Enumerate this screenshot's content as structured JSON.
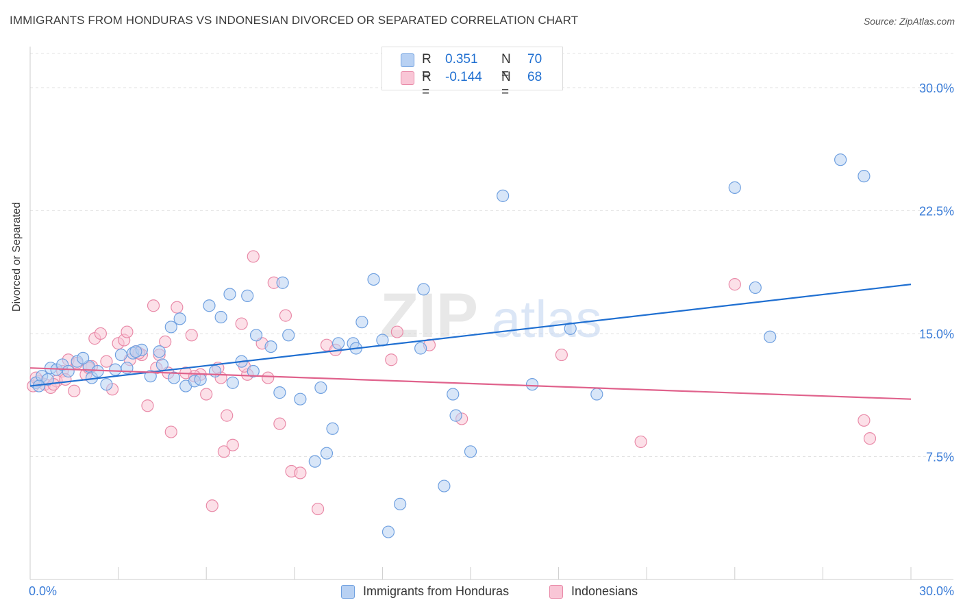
{
  "title": "IMMIGRANTS FROM HONDURAS VS INDONESIAN DIVORCED OR SEPARATED CORRELATION CHART",
  "source": "Source: ZipAtlas.com",
  "watermark": {
    "zip": "ZIP",
    "atlas": "atlas"
  },
  "legend_top": [
    {
      "swatch_color": "#b8d1f3",
      "border_color": "#6fa0e0",
      "r_label": "R =",
      "r_value": "0.351",
      "n_label": "N =",
      "n_value": "70"
    },
    {
      "swatch_color": "#f9c6d6",
      "border_color": "#e98aa8",
      "r_label": "R =",
      "r_value": "-0.144",
      "n_label": "N =",
      "n_value": "68"
    }
  ],
  "legend_bottom": [
    {
      "label": "Immigrants from Honduras",
      "swatch_color": "#b8d1f3",
      "border_color": "#6fa0e0"
    },
    {
      "label": "Indonesians",
      "swatch_color": "#f9c6d6",
      "border_color": "#e98aa8"
    }
  ],
  "chart_data": {
    "type": "scatter",
    "title": "IMMIGRANTS FROM HONDURAS VS INDONESIAN DIVORCED OR SEPARATED CORRELATION CHART",
    "xlabel": "",
    "ylabel": "Divorced or Separated",
    "xlim": [
      0,
      30
    ],
    "ylim": [
      0,
      32
    ],
    "x_tick_labels": [
      "0.0%",
      "30.0%"
    ],
    "y_ticks": [
      7.5,
      15.0,
      22.5,
      30.0
    ],
    "y_tick_labels": [
      "7.5%",
      "15.0%",
      "22.5%",
      "30.0%"
    ],
    "grid": "horizontal dashed",
    "legend_position": "top-center and bottom",
    "colors": {
      "series1_fill": "#b8d1f3",
      "series1_stroke": "#6fa0e0",
      "series1_line": "#1f6fd1",
      "series2_fill": "#f9c6d6",
      "series2_stroke": "#e98aa8",
      "series2_line": "#e0628c",
      "axis_label_blue": "#3b7dd8"
    },
    "series": [
      {
        "name": "Immigrants from Honduras",
        "color": "#6fa0e0",
        "trendline": {
          "x": [
            0,
            30
          ],
          "y": [
            11.8,
            18.0
          ]
        },
        "points": [
          [
            0.2,
            12.0
          ],
          [
            0.4,
            12.4
          ],
          [
            0.6,
            12.2
          ],
          [
            0.7,
            12.9
          ],
          [
            0.9,
            12.8
          ],
          [
            1.1,
            13.1
          ],
          [
            1.3,
            12.7
          ],
          [
            1.6,
            13.3
          ],
          [
            2.0,
            13.0
          ],
          [
            2.1,
            12.3
          ],
          [
            2.3,
            12.7
          ],
          [
            2.6,
            11.9
          ],
          [
            2.9,
            12.8
          ],
          [
            3.1,
            13.7
          ],
          [
            3.3,
            12.9
          ],
          [
            3.5,
            13.8
          ],
          [
            3.8,
            14.0
          ],
          [
            4.1,
            12.4
          ],
          [
            4.4,
            13.9
          ],
          [
            4.5,
            13.1
          ],
          [
            4.8,
            15.4
          ],
          [
            4.9,
            12.3
          ],
          [
            5.1,
            15.9
          ],
          [
            5.3,
            11.8
          ],
          [
            5.6,
            12.1
          ],
          [
            5.8,
            12.2
          ],
          [
            6.1,
            16.7
          ],
          [
            6.3,
            12.7
          ],
          [
            6.5,
            16.0
          ],
          [
            6.8,
            17.4
          ],
          [
            6.9,
            12.0
          ],
          [
            7.2,
            13.3
          ],
          [
            7.4,
            17.3
          ],
          [
            7.6,
            12.7
          ],
          [
            7.7,
            14.9
          ],
          [
            8.2,
            14.2
          ],
          [
            8.6,
            18.1
          ],
          [
            8.5,
            11.4
          ],
          [
            8.8,
            14.9
          ],
          [
            9.2,
            11.0
          ],
          [
            9.7,
            7.2
          ],
          [
            9.9,
            11.7
          ],
          [
            10.1,
            7.7
          ],
          [
            10.3,
            9.2
          ],
          [
            10.5,
            14.4
          ],
          [
            11.0,
            14.4
          ],
          [
            11.1,
            14.1
          ],
          [
            11.3,
            15.7
          ],
          [
            11.7,
            18.3
          ],
          [
            12.0,
            14.6
          ],
          [
            12.2,
            2.9
          ],
          [
            12.6,
            4.6
          ],
          [
            13.3,
            14.1
          ],
          [
            13.4,
            17.7
          ],
          [
            14.1,
            5.7
          ],
          [
            14.4,
            11.3
          ],
          [
            14.5,
            10.0
          ],
          [
            15.0,
            7.8
          ],
          [
            16.1,
            23.4
          ],
          [
            17.1,
            11.9
          ],
          [
            18.4,
            15.3
          ],
          [
            19.3,
            11.3
          ],
          [
            24.0,
            23.9
          ],
          [
            24.7,
            17.8
          ],
          [
            25.2,
            14.8
          ],
          [
            27.6,
            25.6
          ],
          [
            28.4,
            24.6
          ],
          [
            0.3,
            11.8
          ],
          [
            1.8,
            13.5
          ],
          [
            3.6,
            13.9
          ]
        ]
      },
      {
        "name": "Indonesians",
        "color": "#e98aa8",
        "trendline": {
          "x": [
            0,
            30
          ],
          "y": [
            12.9,
            11.0
          ]
        },
        "points": [
          [
            0.1,
            11.8
          ],
          [
            0.3,
            12.1
          ],
          [
            0.5,
            11.9
          ],
          [
            0.7,
            11.7
          ],
          [
            0.9,
            12.1
          ],
          [
            1.1,
            12.7
          ],
          [
            1.3,
            13.4
          ],
          [
            1.5,
            11.5
          ],
          [
            1.6,
            13.2
          ],
          [
            1.9,
            12.5
          ],
          [
            2.1,
            13.0
          ],
          [
            2.2,
            14.7
          ],
          [
            2.4,
            15.0
          ],
          [
            2.6,
            13.3
          ],
          [
            2.8,
            11.6
          ],
          [
            3.0,
            14.4
          ],
          [
            3.2,
            14.6
          ],
          [
            3.3,
            15.1
          ],
          [
            3.4,
            13.4
          ],
          [
            3.6,
            13.9
          ],
          [
            3.8,
            13.7
          ],
          [
            4.0,
            10.6
          ],
          [
            4.2,
            16.7
          ],
          [
            4.4,
            13.7
          ],
          [
            4.6,
            14.5
          ],
          [
            4.7,
            12.6
          ],
          [
            4.8,
            9.0
          ],
          [
            5.0,
            16.6
          ],
          [
            5.3,
            12.6
          ],
          [
            5.5,
            14.9
          ],
          [
            5.8,
            12.5
          ],
          [
            6.0,
            11.3
          ],
          [
            6.2,
            4.5
          ],
          [
            6.4,
            12.9
          ],
          [
            6.6,
            7.8
          ],
          [
            6.7,
            10.0
          ],
          [
            6.9,
            8.2
          ],
          [
            7.2,
            15.6
          ],
          [
            7.4,
            12.5
          ],
          [
            7.6,
            19.7
          ],
          [
            7.9,
            14.4
          ],
          [
            8.1,
            12.3
          ],
          [
            8.3,
            18.1
          ],
          [
            8.5,
            9.5
          ],
          [
            8.7,
            16.1
          ],
          [
            8.9,
            6.6
          ],
          [
            9.2,
            6.5
          ],
          [
            9.8,
            4.3
          ],
          [
            10.1,
            14.3
          ],
          [
            10.4,
            14.0
          ],
          [
            12.3,
            13.4
          ],
          [
            12.5,
            15.1
          ],
          [
            13.6,
            14.3
          ],
          [
            14.7,
            9.8
          ],
          [
            18.1,
            13.7
          ],
          [
            20.8,
            8.4
          ],
          [
            24.0,
            18.0
          ],
          [
            28.4,
            9.7
          ],
          [
            28.6,
            8.6
          ],
          [
            0.2,
            12.3
          ],
          [
            0.8,
            11.9
          ],
          [
            1.2,
            12.2
          ],
          [
            2.0,
            12.9
          ],
          [
            3.7,
            13.8
          ],
          [
            4.3,
            12.9
          ],
          [
            5.6,
            12.4
          ],
          [
            6.5,
            12.3
          ],
          [
            7.3,
            13.0
          ]
        ]
      }
    ]
  }
}
